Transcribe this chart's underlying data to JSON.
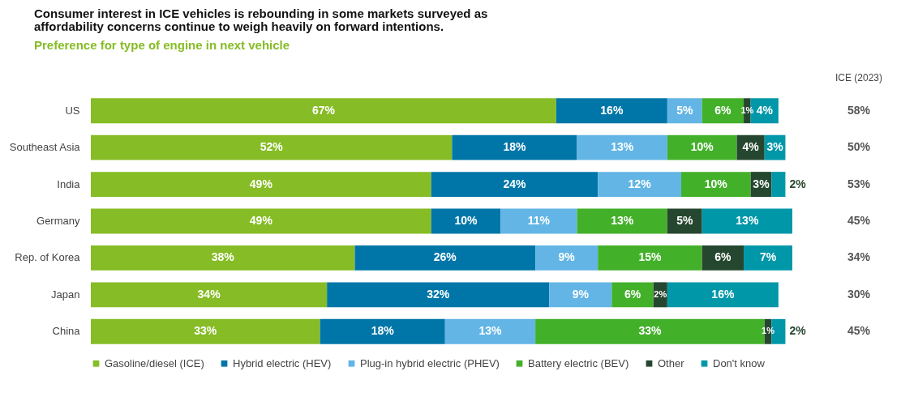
{
  "chart_data": {
    "type": "bar",
    "orientation": "horizontal",
    "stacked": true,
    "title": "Consumer interest in ICE vehicles is rebounding in some markets surveyed as affordability concerns continue to weigh heavily on forward intentions.",
    "subtitle": "Preference for type of engine in next vehicle",
    "categories": [
      "US",
      "Southeast Asia",
      "India",
      "Germany",
      "Rep. of Korea",
      "Japan",
      "China"
    ],
    "series": [
      {
        "name": "Gasoline/diesel (ICE)",
        "color": "#86bc25",
        "values": [
          67,
          52,
          49,
          49,
          38,
          34,
          33
        ],
        "value_labels": [
          "67%",
          "52%",
          "49%",
          "49%",
          "38%",
          "34%",
          "33%"
        ]
      },
      {
        "name": "Hybrid electric (HEV)",
        "color": "#0076a8",
        "values": [
          16,
          18,
          24,
          10,
          26,
          32,
          18
        ],
        "value_labels": [
          "16%",
          "18%",
          "24%",
          "10%",
          "26%",
          "32%",
          "18%"
        ]
      },
      {
        "name": "Plug-in hybrid electric (PHEV)",
        "color": "#62b5e5",
        "values": [
          5,
          13,
          12,
          11,
          9,
          9,
          13
        ],
        "value_labels": [
          "5%",
          "13%",
          "12%",
          "11%",
          "9%",
          "9%",
          "13%"
        ]
      },
      {
        "name": "Battery electric (BEV)",
        "color": "#43b02a",
        "values": [
          6,
          10,
          10,
          13,
          15,
          6,
          33
        ],
        "value_labels": [
          "6%",
          "10%",
          "10%",
          "13%",
          "15%",
          "6%",
          "33%"
        ]
      },
      {
        "name": "Other",
        "color": "#26472f",
        "values": [
          1,
          4,
          3,
          5,
          6,
          2,
          1
        ],
        "value_labels": [
          "1%",
          "4%",
          "3%",
          "5%",
          "6%",
          "2%",
          "1%"
        ]
      },
      {
        "name": "Don't know",
        "color": "#0097a9",
        "values": [
          4,
          3,
          2,
          13,
          7,
          16,
          2
        ],
        "value_labels": [
          "4%",
          "3%",
          "2%",
          "13%",
          "7%",
          "16%",
          "2%"
        ]
      }
    ],
    "annotations": [
      "ICE (2023)",
      "58%",
      "50%",
      "53%",
      "45%",
      "34%",
      "30%",
      "45%"
    ],
    "legend": "bottom"
  }
}
